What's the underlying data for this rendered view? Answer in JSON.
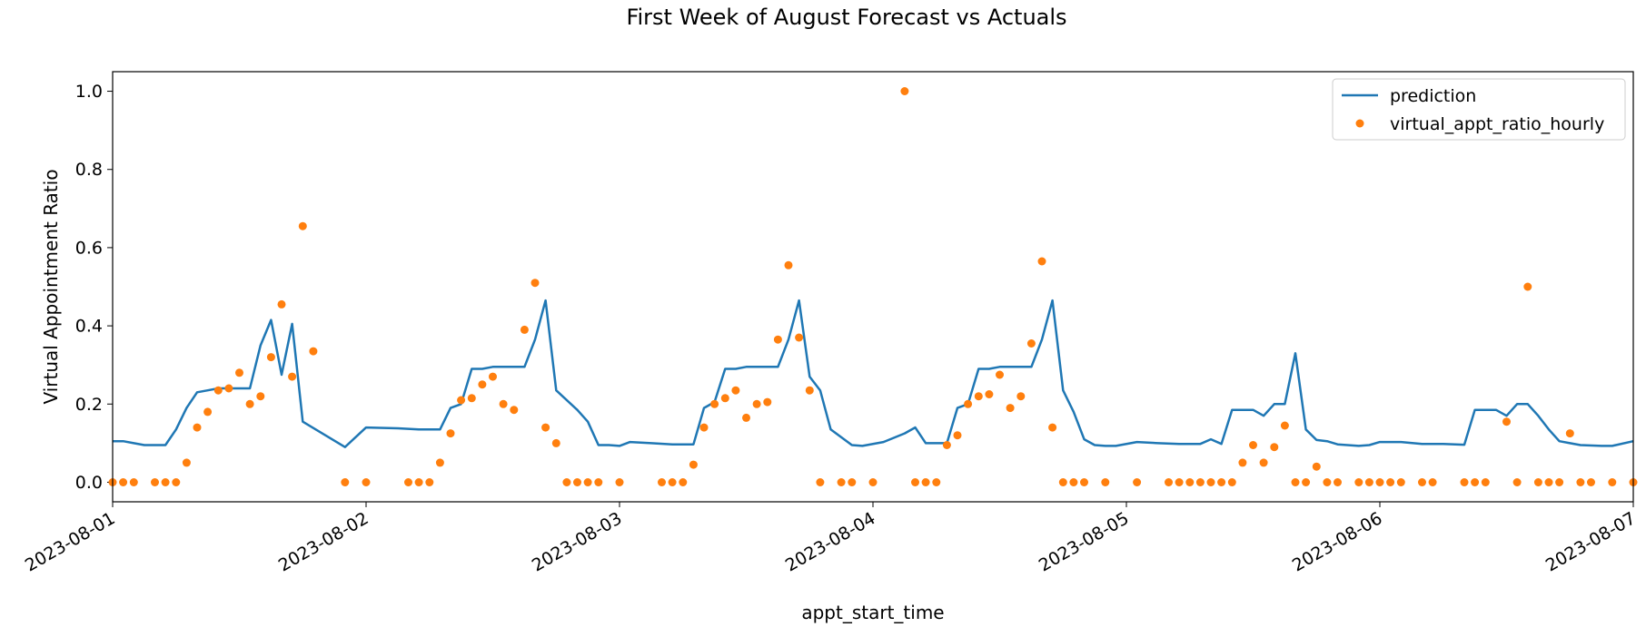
{
  "chart_data": {
    "type": "line",
    "title": "First Week of August Forecast vs Actuals",
    "xlabel": "appt_start_time",
    "ylabel": "Virtual Appointment Ratio",
    "xlim": [
      "2023-08-01 00:00",
      "2023-08-07 00:00"
    ],
    "ylim": [
      -0.05,
      1.05
    ],
    "x_ticks": [
      "2023-08-01",
      "2023-08-02",
      "2023-08-03",
      "2023-08-04",
      "2023-08-05",
      "2023-08-06",
      "2023-08-07"
    ],
    "y_ticks": [
      "0.0",
      "0.2",
      "0.4",
      "0.6",
      "0.8",
      "1.0"
    ],
    "grid": false,
    "legend_position": "top-right",
    "series": [
      {
        "name": "prediction",
        "kind": "line",
        "color": "#1f77b4",
        "points": [
          [
            "2023-08-01 00:00",
            0.105
          ],
          [
            "2023-08-01 01:00",
            0.105
          ],
          [
            "2023-08-01 02:00",
            0.1
          ],
          [
            "2023-08-01 03:00",
            0.095
          ],
          [
            "2023-08-01 04:00",
            0.095
          ],
          [
            "2023-08-01 05:00",
            0.095
          ],
          [
            "2023-08-01 06:00",
            0.135
          ],
          [
            "2023-08-01 07:00",
            0.19
          ],
          [
            "2023-08-01 08:00",
            0.23
          ],
          [
            "2023-08-01 09:00",
            0.235
          ],
          [
            "2023-08-01 10:00",
            0.24
          ],
          [
            "2023-08-01 11:00",
            0.24
          ],
          [
            "2023-08-01 12:00",
            0.24
          ],
          [
            "2023-08-01 13:00",
            0.24
          ],
          [
            "2023-08-01 14:00",
            0.35
          ],
          [
            "2023-08-01 15:00",
            0.415
          ],
          [
            "2023-08-01 16:00",
            0.275
          ],
          [
            "2023-08-01 17:00",
            0.405
          ],
          [
            "2023-08-01 18:00",
            0.155
          ],
          [
            "2023-08-01 22:00",
            0.09
          ],
          [
            "2023-08-02 00:00",
            0.14
          ],
          [
            "2023-08-02 03:00",
            0.138
          ],
          [
            "2023-08-02 05:00",
            0.135
          ],
          [
            "2023-08-02 07:00",
            0.135
          ],
          [
            "2023-08-02 08:00",
            0.19
          ],
          [
            "2023-08-02 09:00",
            0.2
          ],
          [
            "2023-08-02 10:00",
            0.29
          ],
          [
            "2023-08-02 11:00",
            0.29
          ],
          [
            "2023-08-02 12:00",
            0.295
          ],
          [
            "2023-08-02 14:00",
            0.295
          ],
          [
            "2023-08-02 15:00",
            0.295
          ],
          [
            "2023-08-02 16:00",
            0.365
          ],
          [
            "2023-08-02 17:00",
            0.465
          ],
          [
            "2023-08-02 18:00",
            0.235
          ],
          [
            "2023-08-02 20:00",
            0.185
          ],
          [
            "2023-08-02 21:00",
            0.155
          ],
          [
            "2023-08-02 22:00",
            0.095
          ],
          [
            "2023-08-02 23:00",
            0.095
          ],
          [
            "2023-08-03 00:00",
            0.093
          ],
          [
            "2023-08-03 01:00",
            0.103
          ],
          [
            "2023-08-03 03:00",
            0.1
          ],
          [
            "2023-08-03 05:00",
            0.097
          ],
          [
            "2023-08-03 07:00",
            0.097
          ],
          [
            "2023-08-03 08:00",
            0.19
          ],
          [
            "2023-08-03 09:00",
            0.205
          ],
          [
            "2023-08-03 10:00",
            0.29
          ],
          [
            "2023-08-03 11:00",
            0.29
          ],
          [
            "2023-08-03 12:00",
            0.295
          ],
          [
            "2023-08-03 14:00",
            0.295
          ],
          [
            "2023-08-03 15:00",
            0.295
          ],
          [
            "2023-08-03 16:00",
            0.365
          ],
          [
            "2023-08-03 17:00",
            0.465
          ],
          [
            "2023-08-03 18:00",
            0.27
          ],
          [
            "2023-08-03 19:00",
            0.235
          ],
          [
            "2023-08-03 20:00",
            0.135
          ],
          [
            "2023-08-03 22:00",
            0.095
          ],
          [
            "2023-08-03 23:00",
            0.093
          ],
          [
            "2023-08-04 01:00",
            0.103
          ],
          [
            "2023-08-04 03:00",
            0.125
          ],
          [
            "2023-08-04 04:00",
            0.14
          ],
          [
            "2023-08-04 05:00",
            0.1
          ],
          [
            "2023-08-04 06:00",
            0.1
          ],
          [
            "2023-08-04 07:00",
            0.1
          ],
          [
            "2023-08-04 08:00",
            0.19
          ],
          [
            "2023-08-04 09:00",
            0.2
          ],
          [
            "2023-08-04 10:00",
            0.29
          ],
          [
            "2023-08-04 11:00",
            0.29
          ],
          [
            "2023-08-04 12:00",
            0.295
          ],
          [
            "2023-08-04 14:00",
            0.295
          ],
          [
            "2023-08-04 15:00",
            0.295
          ],
          [
            "2023-08-04 16:00",
            0.365
          ],
          [
            "2023-08-04 17:00",
            0.465
          ],
          [
            "2023-08-04 18:00",
            0.235
          ],
          [
            "2023-08-04 19:00",
            0.18
          ],
          [
            "2023-08-04 20:00",
            0.11
          ],
          [
            "2023-08-04 21:00",
            0.095
          ],
          [
            "2023-08-04 22:00",
            0.093
          ],
          [
            "2023-08-04 23:00",
            0.093
          ],
          [
            "2023-08-05 01:00",
            0.103
          ],
          [
            "2023-08-05 03:00",
            0.1
          ],
          [
            "2023-08-05 05:00",
            0.098
          ],
          [
            "2023-08-05 07:00",
            0.098
          ],
          [
            "2023-08-05 08:00",
            0.11
          ],
          [
            "2023-08-05 09:00",
            0.098
          ],
          [
            "2023-08-05 10:00",
            0.185
          ],
          [
            "2023-08-05 11:00",
            0.185
          ],
          [
            "2023-08-05 12:00",
            0.185
          ],
          [
            "2023-08-05 13:00",
            0.17
          ],
          [
            "2023-08-05 14:00",
            0.2
          ],
          [
            "2023-08-05 15:00",
            0.2
          ],
          [
            "2023-08-05 16:00",
            0.33
          ],
          [
            "2023-08-05 17:00",
            0.135
          ],
          [
            "2023-08-05 18:00",
            0.108
          ],
          [
            "2023-08-05 19:00",
            0.105
          ],
          [
            "2023-08-05 20:00",
            0.097
          ],
          [
            "2023-08-05 22:00",
            0.093
          ],
          [
            "2023-08-05 23:00",
            0.095
          ],
          [
            "2023-08-06 00:00",
            0.103
          ],
          [
            "2023-08-06 02:00",
            0.103
          ],
          [
            "2023-08-06 04:00",
            0.098
          ],
          [
            "2023-08-06 06:00",
            0.098
          ],
          [
            "2023-08-06 08:00",
            0.096
          ],
          [
            "2023-08-06 09:00",
            0.185
          ],
          [
            "2023-08-06 10:00",
            0.185
          ],
          [
            "2023-08-06 11:00",
            0.185
          ],
          [
            "2023-08-06 12:00",
            0.17
          ],
          [
            "2023-08-06 13:00",
            0.2
          ],
          [
            "2023-08-06 14:00",
            0.2
          ],
          [
            "2023-08-06 15:00",
            0.17
          ],
          [
            "2023-08-06 16:00",
            0.135
          ],
          [
            "2023-08-06 17:00",
            0.105
          ],
          [
            "2023-08-06 18:00",
            0.1
          ],
          [
            "2023-08-06 19:00",
            0.095
          ],
          [
            "2023-08-06 21:00",
            0.093
          ],
          [
            "2023-08-06 22:00",
            0.093
          ],
          [
            "2023-08-07 00:00",
            0.105
          ]
        ]
      },
      {
        "name": "virtual_appt_ratio_hourly",
        "kind": "points",
        "color": "#ff7f0e",
        "points": [
          [
            "2023-08-01 00:00",
            0.0
          ],
          [
            "2023-08-01 01:00",
            0.0
          ],
          [
            "2023-08-01 02:00",
            0.0
          ],
          [
            "2023-08-01 04:00",
            0.0
          ],
          [
            "2023-08-01 05:00",
            0.0
          ],
          [
            "2023-08-01 06:00",
            0.0
          ],
          [
            "2023-08-01 07:00",
            0.05
          ],
          [
            "2023-08-01 08:00",
            0.14
          ],
          [
            "2023-08-01 09:00",
            0.18
          ],
          [
            "2023-08-01 10:00",
            0.235
          ],
          [
            "2023-08-01 11:00",
            0.24
          ],
          [
            "2023-08-01 12:00",
            0.28
          ],
          [
            "2023-08-01 13:00",
            0.2
          ],
          [
            "2023-08-01 14:00",
            0.22
          ],
          [
            "2023-08-01 15:00",
            0.32
          ],
          [
            "2023-08-01 16:00",
            0.455
          ],
          [
            "2023-08-01 17:00",
            0.27
          ],
          [
            "2023-08-01 18:00",
            0.655
          ],
          [
            "2023-08-01 19:00",
            0.335
          ],
          [
            "2023-08-01 22:00",
            0.0
          ],
          [
            "2023-08-02 00:00",
            0.0
          ],
          [
            "2023-08-02 04:00",
            0.0
          ],
          [
            "2023-08-02 05:00",
            0.0
          ],
          [
            "2023-08-02 06:00",
            0.0
          ],
          [
            "2023-08-02 07:00",
            0.05
          ],
          [
            "2023-08-02 08:00",
            0.125
          ],
          [
            "2023-08-02 09:00",
            0.21
          ],
          [
            "2023-08-02 10:00",
            0.215
          ],
          [
            "2023-08-02 11:00",
            0.25
          ],
          [
            "2023-08-02 12:00",
            0.27
          ],
          [
            "2023-08-02 13:00",
            0.2
          ],
          [
            "2023-08-02 14:00",
            0.185
          ],
          [
            "2023-08-02 15:00",
            0.39
          ],
          [
            "2023-08-02 16:00",
            0.51
          ],
          [
            "2023-08-02 17:00",
            0.14
          ],
          [
            "2023-08-02 18:00",
            0.1
          ],
          [
            "2023-08-02 19:00",
            0.0
          ],
          [
            "2023-08-02 20:00",
            0.0
          ],
          [
            "2023-08-02 21:00",
            0.0
          ],
          [
            "2023-08-02 22:00",
            0.0
          ],
          [
            "2023-08-03 00:00",
            0.0
          ],
          [
            "2023-08-03 04:00",
            0.0
          ],
          [
            "2023-08-03 05:00",
            0.0
          ],
          [
            "2023-08-03 06:00",
            0.0
          ],
          [
            "2023-08-03 07:00",
            0.045
          ],
          [
            "2023-08-03 08:00",
            0.14
          ],
          [
            "2023-08-03 09:00",
            0.2
          ],
          [
            "2023-08-03 10:00",
            0.215
          ],
          [
            "2023-08-03 11:00",
            0.235
          ],
          [
            "2023-08-03 12:00",
            0.165
          ],
          [
            "2023-08-03 13:00",
            0.2
          ],
          [
            "2023-08-03 14:00",
            0.205
          ],
          [
            "2023-08-03 15:00",
            0.365
          ],
          [
            "2023-08-03 16:00",
            0.555
          ],
          [
            "2023-08-03 17:00",
            0.37
          ],
          [
            "2023-08-03 18:00",
            0.235
          ],
          [
            "2023-08-03 19:00",
            0.0
          ],
          [
            "2023-08-03 21:00",
            0.0
          ],
          [
            "2023-08-03 22:00",
            0.0
          ],
          [
            "2023-08-04 00:00",
            0.0
          ],
          [
            "2023-08-04 03:00",
            1.0
          ],
          [
            "2023-08-04 04:00",
            0.0
          ],
          [
            "2023-08-04 05:00",
            0.0
          ],
          [
            "2023-08-04 06:00",
            0.0
          ],
          [
            "2023-08-04 07:00",
            0.095
          ],
          [
            "2023-08-04 08:00",
            0.12
          ],
          [
            "2023-08-04 09:00",
            0.2
          ],
          [
            "2023-08-04 10:00",
            0.22
          ],
          [
            "2023-08-04 11:00",
            0.225
          ],
          [
            "2023-08-04 12:00",
            0.275
          ],
          [
            "2023-08-04 13:00",
            0.19
          ],
          [
            "2023-08-04 14:00",
            0.22
          ],
          [
            "2023-08-04 15:00",
            0.355
          ],
          [
            "2023-08-04 16:00",
            0.565
          ],
          [
            "2023-08-04 17:00",
            0.14
          ],
          [
            "2023-08-04 18:00",
            0.0
          ],
          [
            "2023-08-04 19:00",
            0.0
          ],
          [
            "2023-08-04 20:00",
            0.0
          ],
          [
            "2023-08-04 22:00",
            0.0
          ],
          [
            "2023-08-05 01:00",
            0.0
          ],
          [
            "2023-08-05 04:00",
            0.0
          ],
          [
            "2023-08-05 05:00",
            0.0
          ],
          [
            "2023-08-05 06:00",
            0.0
          ],
          [
            "2023-08-05 07:00",
            0.0
          ],
          [
            "2023-08-05 08:00",
            0.0
          ],
          [
            "2023-08-05 09:00",
            0.0
          ],
          [
            "2023-08-05 10:00",
            0.0
          ],
          [
            "2023-08-05 11:00",
            0.05
          ],
          [
            "2023-08-05 12:00",
            0.095
          ],
          [
            "2023-08-05 13:00",
            0.05
          ],
          [
            "2023-08-05 14:00",
            0.09
          ],
          [
            "2023-08-05 15:00",
            0.145
          ],
          [
            "2023-08-05 16:00",
            0.0
          ],
          [
            "2023-08-05 17:00",
            0.0
          ],
          [
            "2023-08-05 18:00",
            0.04
          ],
          [
            "2023-08-05 19:00",
            0.0
          ],
          [
            "2023-08-05 20:00",
            0.0
          ],
          [
            "2023-08-05 22:00",
            0.0
          ],
          [
            "2023-08-05 23:00",
            0.0
          ],
          [
            "2023-08-06 00:00",
            0.0
          ],
          [
            "2023-08-06 01:00",
            0.0
          ],
          [
            "2023-08-06 02:00",
            0.0
          ],
          [
            "2023-08-06 04:00",
            0.0
          ],
          [
            "2023-08-06 05:00",
            0.0
          ],
          [
            "2023-08-06 08:00",
            0.0
          ],
          [
            "2023-08-06 09:00",
            0.0
          ],
          [
            "2023-08-06 10:00",
            0.0
          ],
          [
            "2023-08-06 12:00",
            0.155
          ],
          [
            "2023-08-06 13:00",
            0.0
          ],
          [
            "2023-08-06 14:00",
            0.5
          ],
          [
            "2023-08-06 15:00",
            0.0
          ],
          [
            "2023-08-06 16:00",
            0.0
          ],
          [
            "2023-08-06 17:00",
            0.0
          ],
          [
            "2023-08-06 18:00",
            0.125
          ],
          [
            "2023-08-06 19:00",
            0.0
          ],
          [
            "2023-08-06 20:00",
            0.0
          ],
          [
            "2023-08-06 22:00",
            0.0
          ],
          [
            "2023-08-07 00:00",
            0.0
          ]
        ]
      }
    ]
  }
}
